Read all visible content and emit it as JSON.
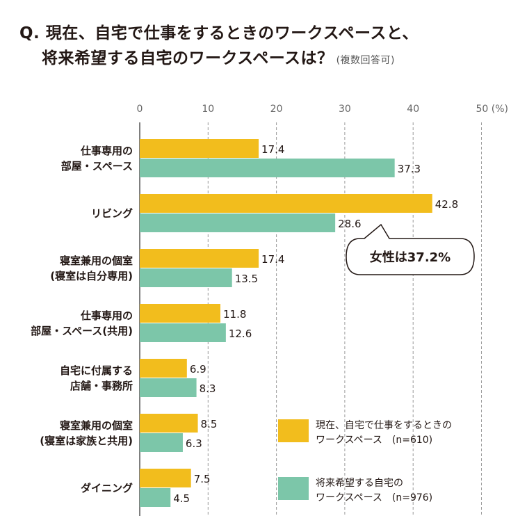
{
  "title": {
    "line1": "Q. 現在、自宅で仕事をするときのワークスペースと、",
    "line2": "将来希望する自宅のワークスペースは？",
    "note": "(複数回答可)"
  },
  "chart_data": {
    "type": "bar",
    "orientation": "horizontal",
    "unit": "(%)",
    "xlim": [
      0,
      50
    ],
    "ticks": [
      "0",
      "10",
      "20",
      "30",
      "40",
      "50"
    ],
    "grid": true,
    "categories": [
      [
        "仕事専用の",
        "部屋・スペース"
      ],
      [
        "リビング"
      ],
      [
        "寝室兼用の個室",
        "(寝室は自分専用)"
      ],
      [
        "仕事専用の",
        "部屋・スペース(共用)"
      ],
      [
        "自宅に付属する",
        "店舗・事務所"
      ],
      [
        "寝室兼用の個室",
        "(寝室は家族と共用)"
      ],
      [
        "ダイニング"
      ]
    ],
    "series": [
      {
        "name": "現在、自宅で仕事をするときのワークスペース　(n=610)",
        "legend_lines": [
          "現在、自宅で仕事をするときの",
          "ワークスペース　(n=610)"
        ],
        "color": "#f2bd1d",
        "values": [
          17.4,
          42.8,
          17.4,
          11.8,
          6.9,
          8.5,
          7.5
        ],
        "labels": [
          "17.4",
          "42.8",
          "17.4",
          "11.8",
          "6.9",
          "8.5",
          "7.5"
        ]
      },
      {
        "name": "将来希望する自宅のワークスペース　(n=976)",
        "legend_lines": [
          "将来希望する自宅の",
          "ワークスペース　(n=976)"
        ],
        "color": "#7cc6a9",
        "values": [
          37.3,
          28.6,
          13.5,
          12.6,
          8.3,
          6.3,
          4.5
        ],
        "labels": [
          "37.3",
          "28.6",
          "13.5",
          "12.6",
          "8.3",
          "6.3",
          "4.5"
        ]
      }
    ],
    "annotation": {
      "text": "女性は37.2%",
      "category_index": 1,
      "series_index": 1
    },
    "legend_position": "bottom-right"
  }
}
